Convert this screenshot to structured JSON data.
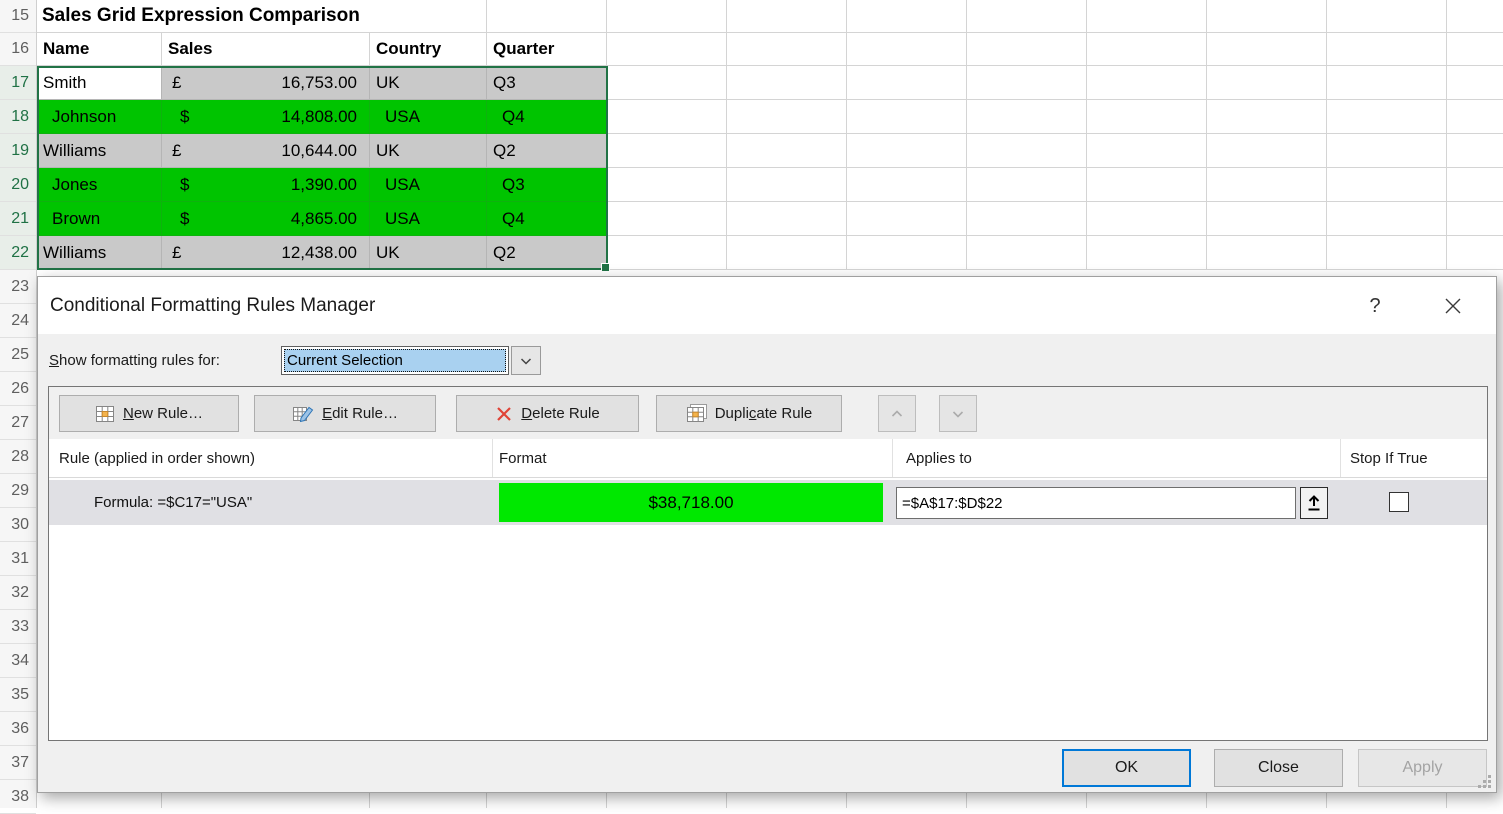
{
  "spreadsheet": {
    "title_row": {
      "num": "15",
      "title": "Sales Grid Expression Comparison"
    },
    "header_row": {
      "num": "16",
      "cells": [
        "Name",
        "Sales",
        "Country",
        "Quarter"
      ]
    },
    "data_rows": [
      {
        "num": "17",
        "name": "Smith",
        "currency": "£",
        "amount": "16,753.00",
        "country": "UK",
        "quarter": "Q3",
        "style": "gray",
        "active": true
      },
      {
        "num": "18",
        "name": "Johnson",
        "currency": "$",
        "amount": "14,808.00",
        "country": "USA",
        "quarter": "Q4",
        "style": "green",
        "active": false
      },
      {
        "num": "19",
        "name": "Williams",
        "currency": "£",
        "amount": "10,644.00",
        "country": "UK",
        "quarter": "Q2",
        "style": "gray",
        "active": false
      },
      {
        "num": "20",
        "name": "Jones",
        "currency": "$",
        "amount": "1,390.00",
        "country": "USA",
        "quarter": "Q3",
        "style": "green",
        "active": false
      },
      {
        "num": "21",
        "name": "Brown",
        "currency": "$",
        "amount": "4,865.00",
        "country": "USA",
        "quarter": "Q4",
        "style": "green",
        "active": false
      },
      {
        "num": "22",
        "name": "Williams",
        "currency": "£",
        "amount": "12,438.00",
        "country": "UK",
        "quarter": "Q2",
        "style": "gray",
        "active": false
      }
    ],
    "lower_row_numbers": [
      "23",
      "24",
      "25",
      "26",
      "27",
      "28",
      "29",
      "30",
      "31",
      "32",
      "33",
      "34",
      "35",
      "36",
      "37",
      "38"
    ]
  },
  "dialog": {
    "title": "Conditional Formatting Rules Manager",
    "help_label": "?",
    "show_rules": {
      "label_u": "S",
      "label_rest": "how formatting rules for:",
      "value": "Current Selection"
    },
    "toolbar": {
      "new_rule": {
        "pre": "",
        "u": "N",
        "post": "ew Rule…"
      },
      "edit_rule": {
        "pre": "",
        "u": "E",
        "post": "dit Rule…"
      },
      "delete_rule": {
        "pre": "",
        "u": "D",
        "post": "elete Rule"
      },
      "duplicate_rule": {
        "pre": "Dupli",
        "u": "c",
        "post": "ate Rule"
      }
    },
    "columns": {
      "rule": "Rule (applied in order shown)",
      "format": "Format",
      "applies_to": "Applies to",
      "stop_if_true": "Stop If True"
    },
    "rule_row": {
      "rule_text": "Formula: =$C17=\"USA\"",
      "preview_text": "$38,718.00",
      "applies_to": "=$A$17:$D$22",
      "stop_if_true_checked": false
    },
    "footer": {
      "ok": "OK",
      "close": "Close",
      "apply": "Apply"
    }
  },
  "colors": {
    "selection_border": "#217346",
    "cell_green": "#00c400",
    "cell_gray": "#c9c9c9",
    "preview_green": "#00e800",
    "accent_blue": "#0078d7",
    "combo_highlight": "#a9d1f0"
  }
}
